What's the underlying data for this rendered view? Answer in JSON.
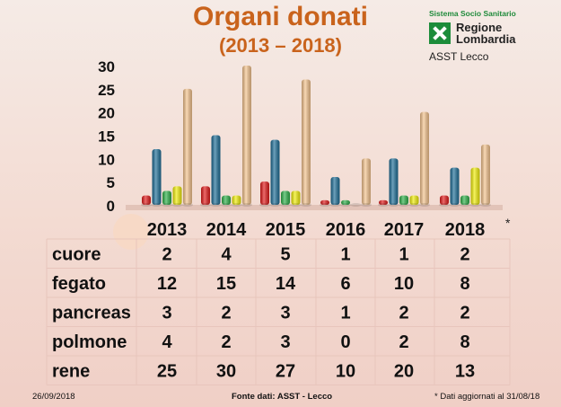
{
  "header": {
    "title": "Organi donati",
    "subtitle": "(2013 – 2018)"
  },
  "logo": {
    "system": "Sistema Socio Sanitario",
    "region_line1": "Regione",
    "region_line2": "Lombardia",
    "unit": "ASST Lecco"
  },
  "footer": {
    "date": "26/09/2018",
    "source": "Fonte dati: ASST - Lecco",
    "note": "* Dati aggiornati al 31/08/18"
  },
  "asterisk": "*",
  "chart_data": {
    "type": "bar",
    "categories": [
      "2013",
      "2014",
      "2015",
      "2016",
      "2017",
      "2018"
    ],
    "series": [
      {
        "name": "cuore",
        "values": [
          2,
          4,
          5,
          1,
          1,
          2
        ],
        "color": "#e31b1b"
      },
      {
        "name": "fegato",
        "values": [
          12,
          15,
          14,
          6,
          10,
          8
        ],
        "color": "#1f6f98"
      },
      {
        "name": "pancreas",
        "values": [
          3,
          2,
          3,
          1,
          2,
          2
        ],
        "color": "#2fb24a"
      },
      {
        "name": "polmone",
        "values": [
          4,
          2,
          3,
          0,
          2,
          8
        ],
        "color": "#f2ef0a"
      },
      {
        "name": "rene",
        "values": [
          25,
          30,
          27,
          10,
          20,
          13
        ],
        "color": "#f6c58f"
      }
    ],
    "yticks": [
      0,
      5,
      10,
      15,
      20,
      25,
      30
    ],
    "ylim": [
      0,
      30
    ],
    "table": true
  }
}
